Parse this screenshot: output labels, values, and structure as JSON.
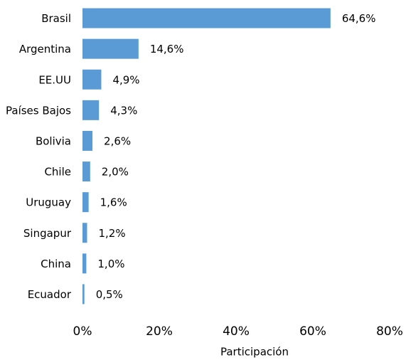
{
  "chart_data": {
    "type": "barh",
    "categories": [
      "Brasil",
      "Argentina",
      "EE.UU",
      "Países Bajos",
      "Bolivia",
      "Chile",
      "Uruguay",
      "Singapur",
      "China",
      "Ecuador"
    ],
    "values": [
      64.6,
      14.6,
      4.9,
      4.3,
      2.6,
      2.0,
      1.6,
      1.2,
      1.0,
      0.5
    ],
    "value_labels": [
      "64,6%",
      "14,6%",
      "4,9%",
      "4,3%",
      "2,6%",
      "2,0%",
      "1,6%",
      "1,2%",
      "1,0%",
      "0,5%"
    ],
    "color": "#5b9bd5",
    "xlabel": "Participación",
    "xlim": [
      0,
      80
    ],
    "xticks": [
      {
        "value": 0,
        "label": "0%"
      },
      {
        "value": 20,
        "label": "20%"
      },
      {
        "value": 40,
        "label": "40%"
      },
      {
        "value": 60,
        "label": "60%"
      },
      {
        "value": 80,
        "label": "80%"
      }
    ],
    "grid": false
  }
}
